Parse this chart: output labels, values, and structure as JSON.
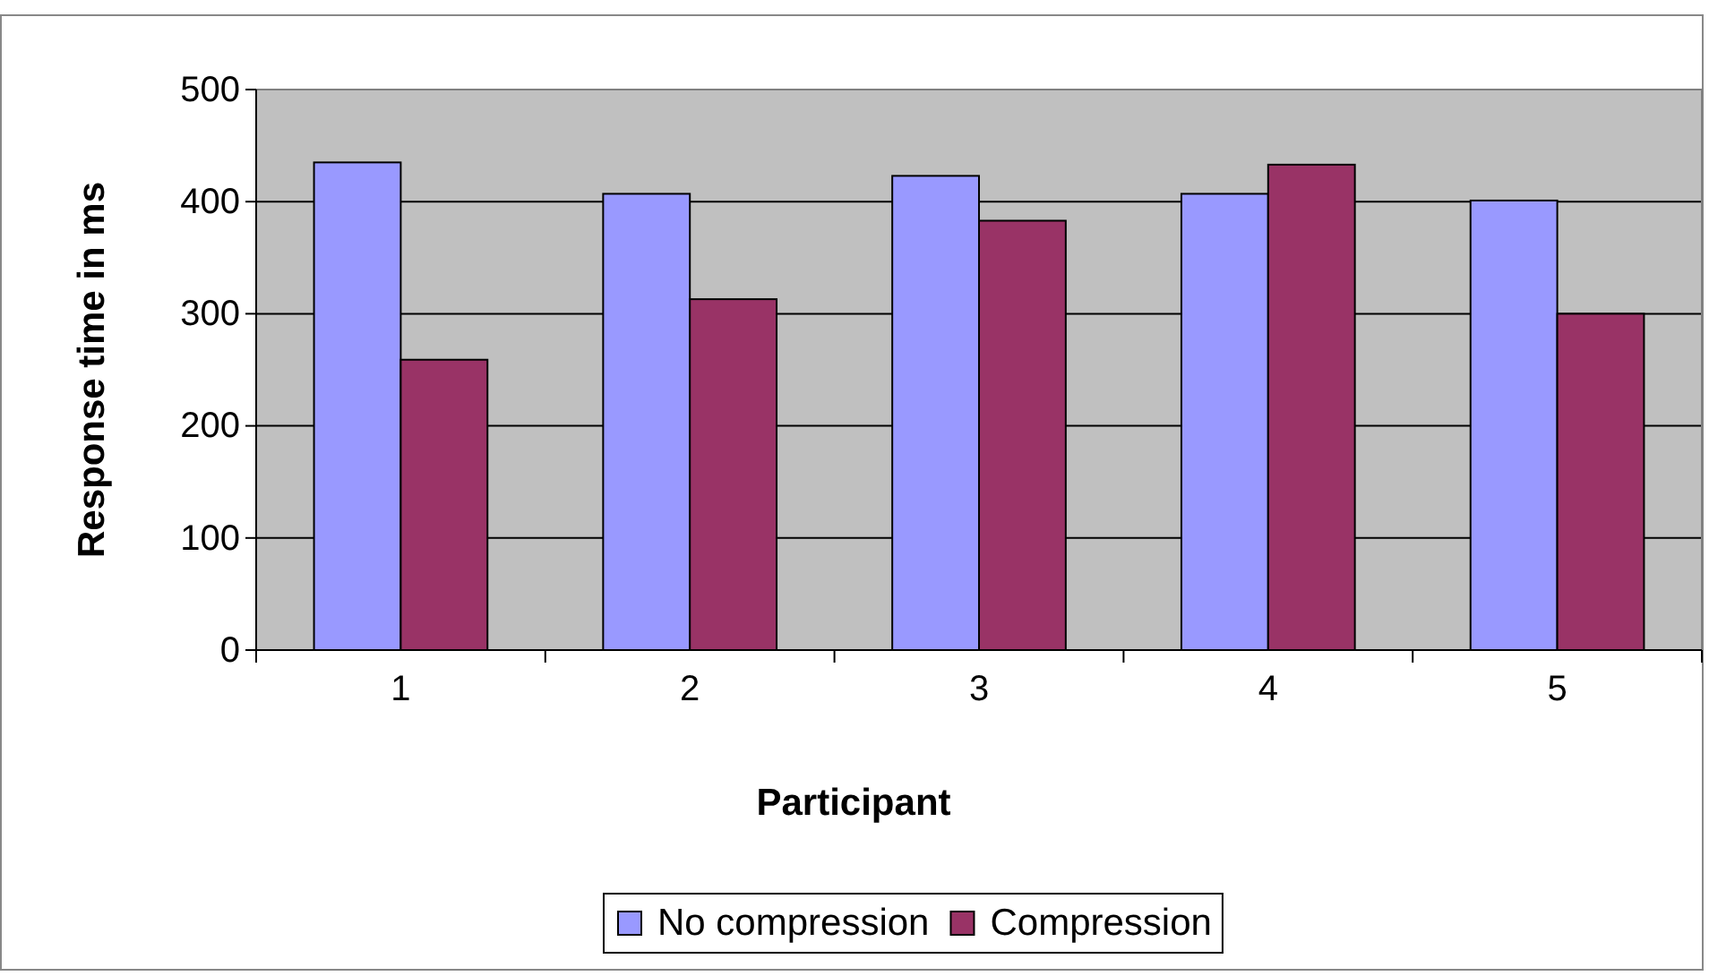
{
  "chart_data": {
    "type": "bar",
    "xlabel": "Participant",
    "ylabel": "Response time in ms",
    "categories": [
      "1",
      "2",
      "3",
      "4",
      "5"
    ],
    "series": [
      {
        "name": "No compression",
        "color": "#9999ff",
        "values": [
          435,
          407,
          423,
          407,
          401
        ]
      },
      {
        "name": "Compression",
        "color": "#993366",
        "values": [
          259,
          313,
          383,
          433,
          300
        ]
      }
    ],
    "ylim": [
      0,
      500
    ],
    "yticks": [
      0,
      100,
      200,
      300,
      400,
      500
    ],
    "grid": "y",
    "legend": "bottom"
  }
}
